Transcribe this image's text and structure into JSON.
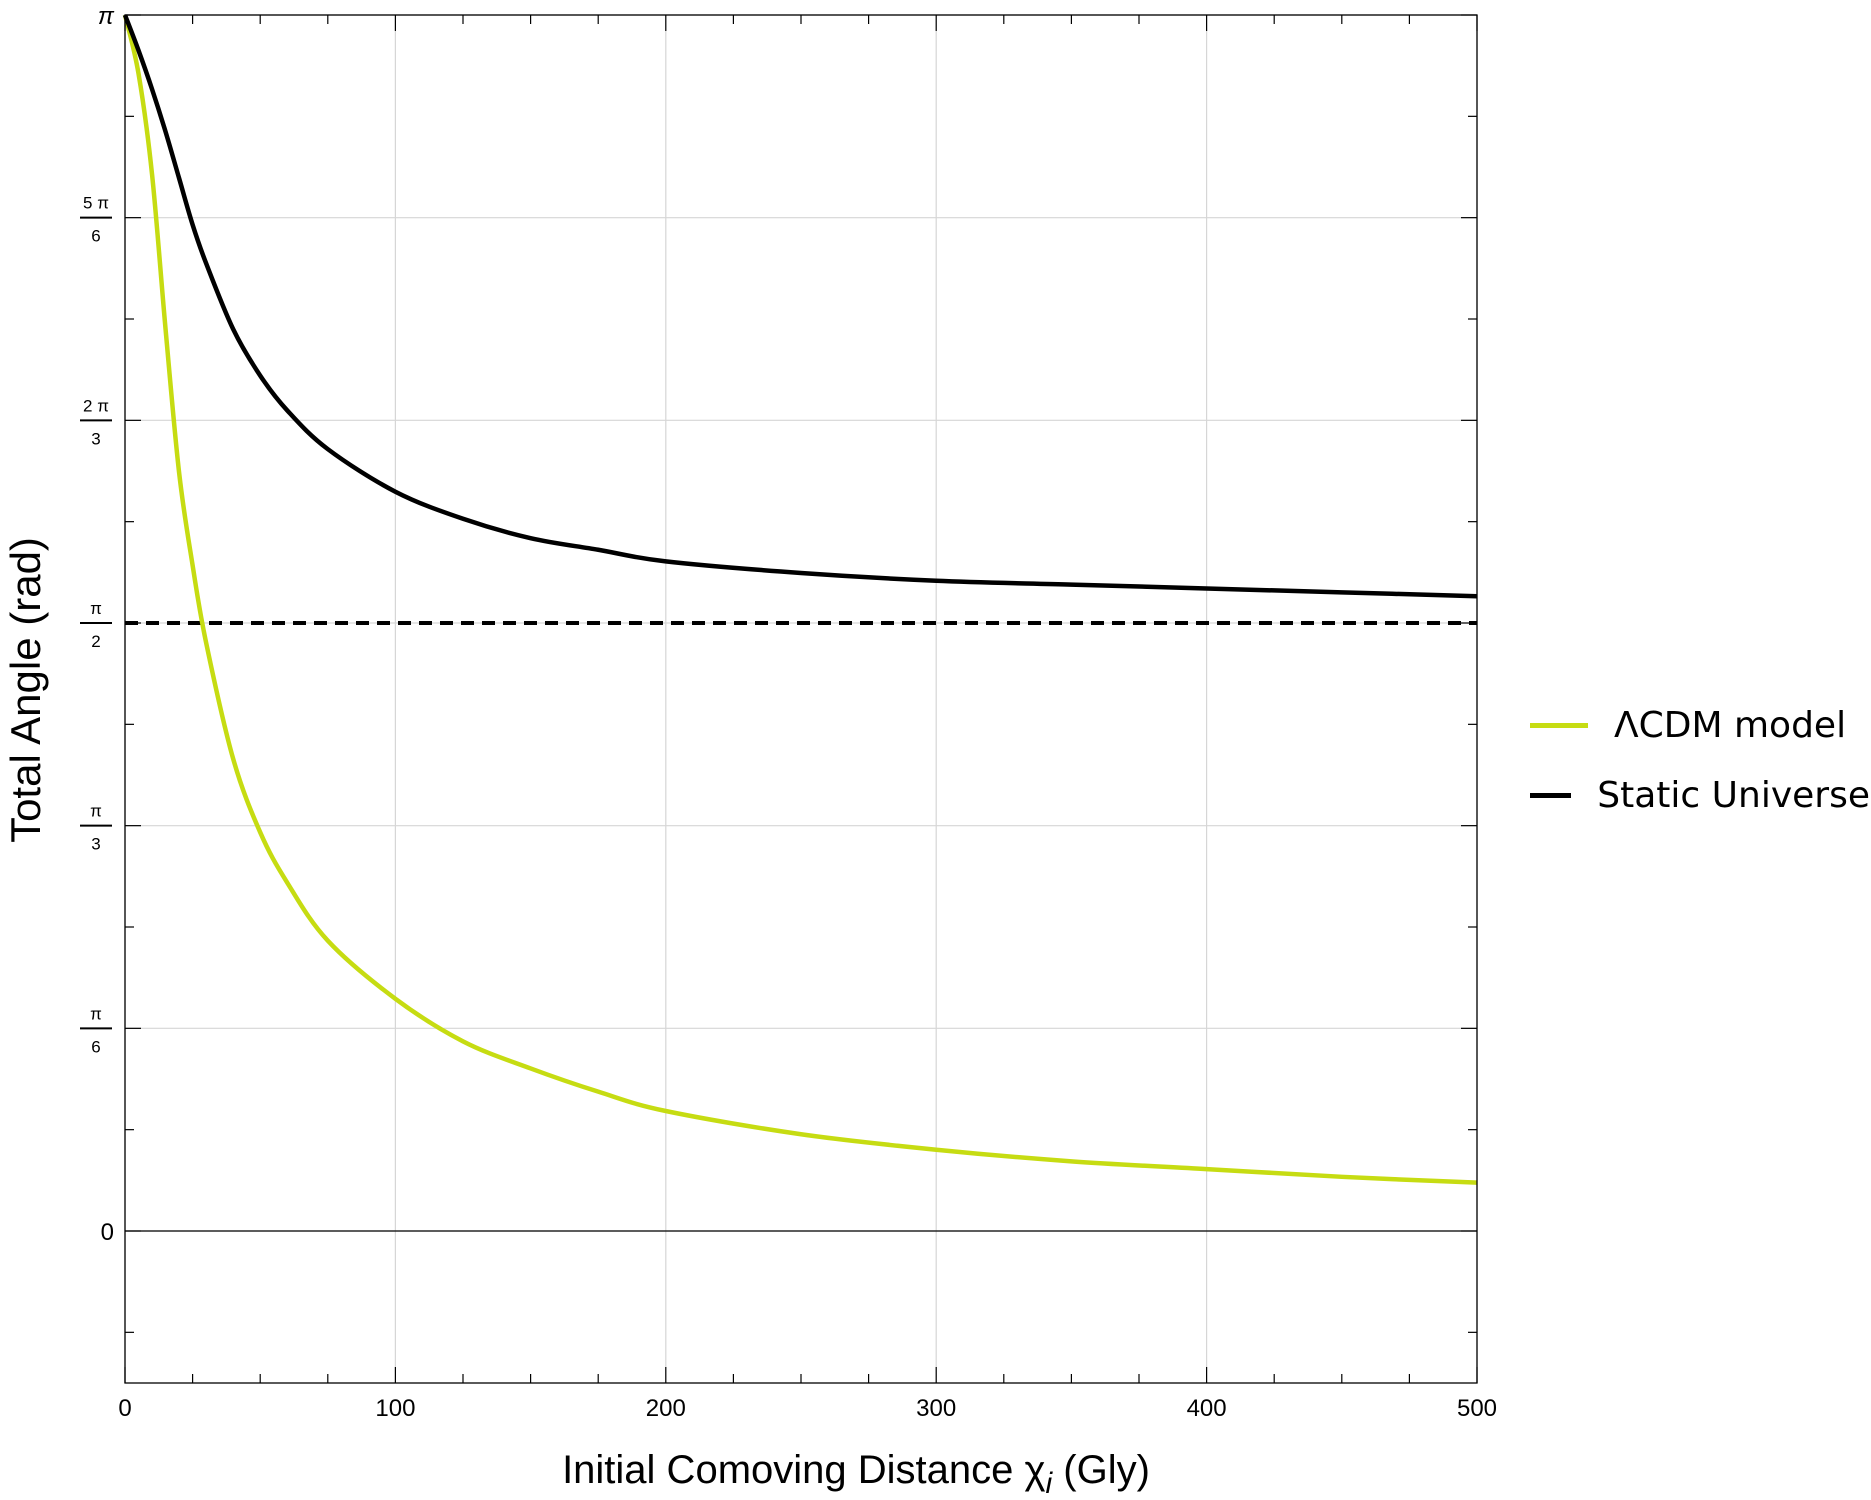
{
  "chart_data": {
    "type": "line",
    "xlabel": "Initial Comoving Distance χ",
    "xlabel_sub": "i",
    "xlabel_unit": "(Gly)",
    "ylabel": "Total Angle (rad)",
    "xlim": [
      0,
      500
    ],
    "ylim": [
      -0.3927,
      3.1416
    ],
    "grid": true,
    "legend_position": "right",
    "x_ticks": [
      {
        "value": 0,
        "label": "0"
      },
      {
        "value": 100,
        "label": "100"
      },
      {
        "value": 200,
        "label": "200"
      },
      {
        "value": 300,
        "label": "300"
      },
      {
        "value": 400,
        "label": "400"
      },
      {
        "value": 500,
        "label": "500"
      }
    ],
    "y_ticks": [
      {
        "value": 0,
        "num": "0",
        "den": ""
      },
      {
        "value": 0.5236,
        "num": "π",
        "den": "6"
      },
      {
        "value": 1.0472,
        "num": "π",
        "den": "3"
      },
      {
        "value": 1.5708,
        "num": "π",
        "den": "2"
      },
      {
        "value": 2.0944,
        "num": "2 π",
        "den": "3"
      },
      {
        "value": 2.618,
        "num": "5 π",
        "den": "6"
      },
      {
        "value": 3.1416,
        "num": "π",
        "den": ""
      }
    ],
    "reference_line": {
      "y": 1.5708,
      "style": "dashed",
      "color": "#000000"
    },
    "series": [
      {
        "name": "ΛCDM model",
        "color": "#c6dc12",
        "x": [
          0,
          5,
          10,
          15,
          20,
          25,
          30,
          40,
          50,
          60,
          75,
          100,
          125,
          150,
          175,
          200,
          250,
          300,
          350,
          400,
          450,
          500
        ],
        "y": [
          3.1416,
          2.99,
          2.73,
          2.33,
          1.96,
          1.72,
          1.52,
          1.22,
          1.03,
          0.9,
          0.75,
          0.6,
          0.49,
          0.42,
          0.36,
          0.31,
          0.25,
          0.21,
          0.18,
          0.16,
          0.14,
          0.125
        ]
      },
      {
        "name": "Static Universe",
        "color": "#000000",
        "x": [
          0,
          5,
          10,
          15,
          20,
          25,
          30,
          40,
          50,
          60,
          75,
          100,
          125,
          150,
          175,
          200,
          250,
          300,
          350,
          400,
          450,
          500
        ],
        "y": [
          3.1416,
          3.05,
          2.95,
          2.84,
          2.72,
          2.6,
          2.5,
          2.33,
          2.21,
          2.12,
          2.02,
          1.91,
          1.84,
          1.79,
          1.76,
          1.73,
          1.7,
          1.68,
          1.67,
          1.66,
          1.65,
          1.64
        ]
      }
    ]
  }
}
